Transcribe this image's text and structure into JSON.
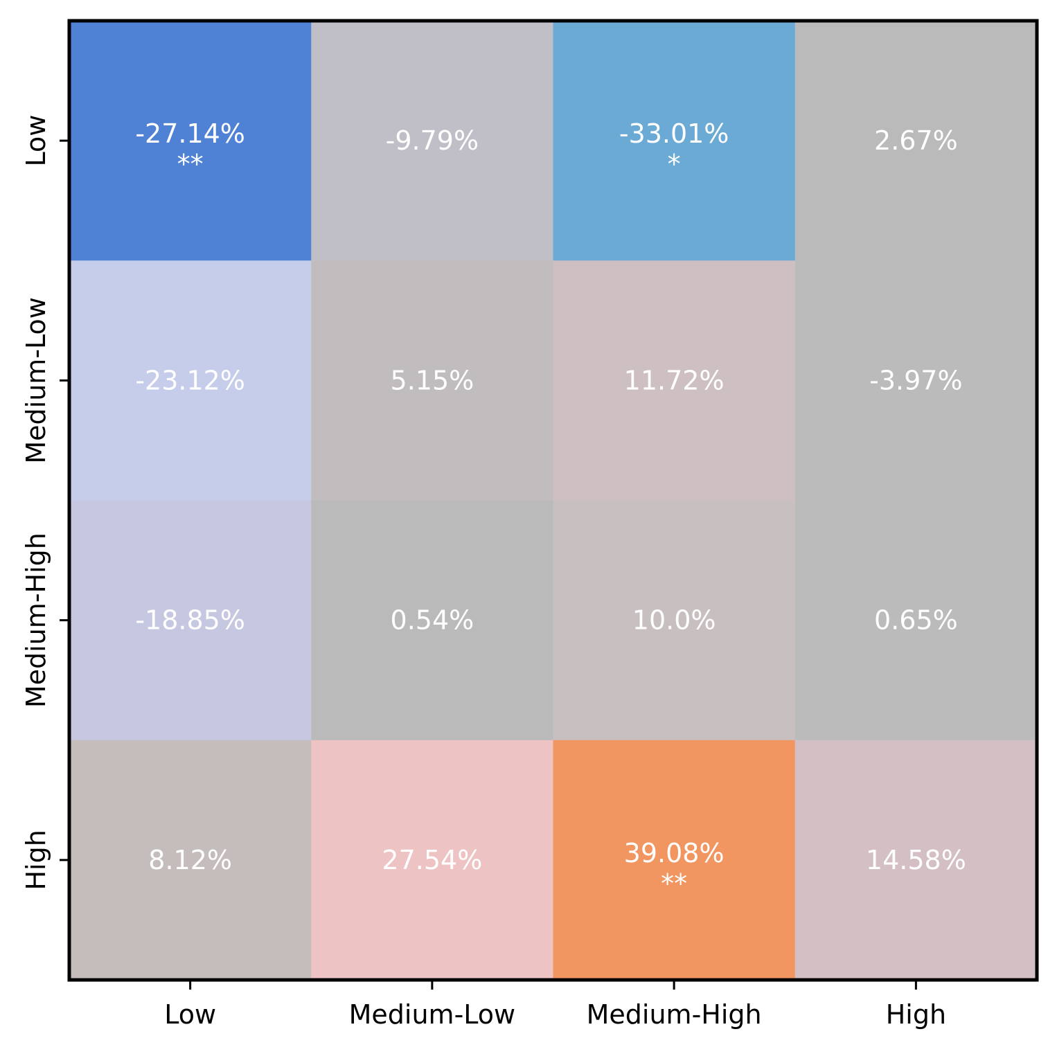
{
  "chart_data": {
    "type": "heatmap",
    "x_categories": [
      "Low",
      "Medium-Low",
      "Medium-High",
      "High"
    ],
    "y_categories": [
      "Low",
      "Medium-Low",
      "Medium-High",
      "High"
    ],
    "values": [
      [
        -27.14,
        -9.79,
        -33.01,
        2.67
      ],
      [
        -23.12,
        5.15,
        11.72,
        -3.97
      ],
      [
        -18.85,
        0.54,
        10.0,
        0.65
      ],
      [
        8.12,
        27.54,
        39.08,
        14.58
      ]
    ],
    "labels": [
      [
        "-27.14%",
        "-9.79%",
        "-33.01%",
        "2.67%"
      ],
      [
        "-23.12%",
        "5.15%",
        "11.72%",
        "-3.97%"
      ],
      [
        "-18.85%",
        "0.54%",
        "10.0%",
        "0.65%"
      ],
      [
        "8.12%",
        "27.54%",
        "39.08%",
        "14.58%"
      ]
    ],
    "significance": [
      [
        "**",
        "",
        "*",
        ""
      ],
      [
        "",
        "",
        "",
        ""
      ],
      [
        "",
        "",
        "",
        ""
      ],
      [
        "",
        "",
        "**",
        ""
      ]
    ],
    "cell_colors": [
      [
        "#4f82d4",
        "#c0bfc8",
        "#6caad6",
        "#bbbabb"
      ],
      [
        "#c6cdeb",
        "#c1bdbf",
        "#cec0c2",
        "#bbbbbc"
      ],
      [
        "#c6c7e0",
        "#bababa",
        "#c8bfc0",
        "#bbbbbb"
      ],
      [
        "#c5bcbc",
        "#edc4c3",
        "#f29661",
        "#d4c0c4"
      ]
    ],
    "title": "",
    "xlabel": "",
    "ylabel": ""
  }
}
